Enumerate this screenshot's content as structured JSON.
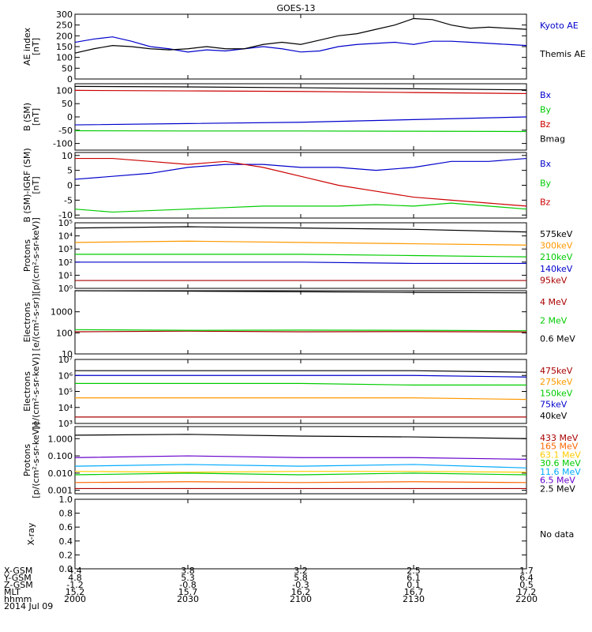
{
  "title": "GOES-13",
  "chart_data": {
    "type": "line",
    "xaxis": {
      "ticks": [
        "2000",
        "2030",
        "2100",
        "2130",
        "2200"
      ],
      "rows": [
        {
          "label": "X-GSM",
          "values": [
            "4.4",
            "3.8",
            "3.2",
            "2.5",
            "1.7"
          ]
        },
        {
          "label": "Y-GSM",
          "values": [
            "4.8",
            "5.3",
            "5.8",
            "6.1",
            "6.4"
          ]
        },
        {
          "label": "Z-GSM",
          "values": [
            "-1.2",
            "-0.8",
            "-0.3",
            "0.1",
            "0.5"
          ]
        },
        {
          "label": "MLT",
          "values": [
            "15.2",
            "15.7",
            "16.2",
            "16.7",
            "17.2"
          ]
        },
        {
          "label": "hhmm",
          "values": [
            "2000",
            "2030",
            "2100",
            "2130",
            "2200"
          ]
        }
      ],
      "date": "2014 Jul 09"
    },
    "panels": [
      {
        "id": "ae",
        "ylabel": [
          "AE index",
          "[nT]"
        ],
        "scale": "linear",
        "ylim": [
          0,
          300
        ],
        "ticks": [
          "0",
          "50",
          "100",
          "150",
          "200",
          "250",
          "300"
        ],
        "series": [
          {
            "name": "Kyoto AE",
            "color": "#0000cc",
            "x": [
              0,
              5,
              10,
              15,
              20,
              25,
              30,
              35,
              40,
              45,
              50,
              55,
              60,
              65,
              70,
              75,
              80,
              85,
              90,
              95,
              100,
              105,
              110,
              115,
              120
            ],
            "y": [
              170,
              185,
              195,
              175,
              150,
              140,
              125,
              135,
              130,
              140,
              150,
              140,
              125,
              130,
              150,
              160,
              165,
              170,
              160,
              175,
              175,
              170,
              165,
              160,
              155
            ]
          },
          {
            "name": "Themis AE",
            "color": "#000000",
            "x": [
              0,
              5,
              10,
              15,
              20,
              25,
              30,
              35,
              40,
              45,
              50,
              55,
              60,
              65,
              70,
              75,
              80,
              85,
              90,
              95,
              100,
              105,
              110,
              115,
              120
            ],
            "y": [
              120,
              140,
              155,
              150,
              140,
              135,
              140,
              150,
              140,
              140,
              160,
              170,
              160,
              180,
              200,
              210,
              230,
              250,
              280,
              275,
              250,
              235,
              240,
              235,
              230
            ]
          }
        ]
      },
      {
        "id": "bsm",
        "ylabel": [
          "B (SM)",
          "[nT]"
        ],
        "scale": "linear",
        "ylim": [
          -125,
          125
        ],
        "ticks": [
          "-100",
          "-50",
          "0",
          "50",
          "100"
        ],
        "series": [
          {
            "name": "Bx",
            "color": "#0000cc",
            "x": [
              0,
              30,
              60,
              90,
              120
            ],
            "y": [
              -30,
              -25,
              -20,
              -10,
              0
            ]
          },
          {
            "name": "By",
            "color": "#00cc00",
            "x": [
              0,
              30,
              60,
              90,
              120
            ],
            "y": [
              -52,
              -53,
              -53,
              -54,
              -55
            ]
          },
          {
            "name": "Bz",
            "color": "#cc0000",
            "x": [
              0,
              30,
              60,
              90,
              120
            ],
            "y": [
              100,
              98,
              96,
              92,
              88
            ]
          },
          {
            "name": "Bmag",
            "color": "#000000",
            "x": [
              0,
              30,
              60,
              90,
              120
            ],
            "y": [
              115,
              113,
              110,
              106,
              102
            ]
          }
        ]
      },
      {
        "id": "bigrf",
        "ylabel": [
          "B (SM)-IGRF (SM)",
          "[nT]"
        ],
        "scale": "linear",
        "ylim": [
          -11,
          11
        ],
        "ticks": [
          "-10",
          "-5",
          "0",
          "5",
          "10"
        ],
        "series": [
          {
            "name": "Bx",
            "color": "#0000cc",
            "x": [
              0,
              10,
              20,
              30,
              40,
              50,
              60,
              70,
              80,
              90,
              100,
              110,
              120
            ],
            "y": [
              2,
              3,
              4,
              6,
              7,
              7,
              6,
              6,
              5,
              6,
              8,
              8,
              9
            ]
          },
          {
            "name": "By",
            "color": "#00cc00",
            "x": [
              0,
              10,
              20,
              30,
              40,
              50,
              60,
              70,
              80,
              90,
              100,
              110,
              120
            ],
            "y": [
              -8,
              -9,
              -8.5,
              -8,
              -7.5,
              -7,
              -7,
              -7,
              -6.5,
              -7,
              -6,
              -7,
              -8
            ]
          },
          {
            "name": "Bz",
            "color": "#cc0000",
            "x": [
              0,
              10,
              20,
              30,
              40,
              50,
              60,
              70,
              80,
              90,
              100,
              110,
              120
            ],
            "y": [
              9,
              9,
              8,
              7,
              8,
              6,
              3,
              0,
              -2,
              -4,
              -5,
              -6,
              -7
            ]
          }
        ]
      },
      {
        "id": "protons",
        "ylabel": [
          "Protons",
          "[p/(cm²-s-sr-keV)]"
        ],
        "scale": "log",
        "ylim": [
          0,
          5
        ],
        "ticks": [
          "10⁰",
          "10¹",
          "10²",
          "10³",
          "10⁴",
          "10⁵"
        ],
        "series": [
          {
            "name": "575keV",
            "color": "#000000",
            "x": [
              0,
              30,
              60,
              90,
              120
            ],
            "y": [
              4.6,
              4.7,
              4.6,
              4.5,
              4.3
            ]
          },
          {
            "name": "300keV",
            "color": "#ff9900",
            "x": [
              0,
              30,
              60,
              90,
              120
            ],
            "y": [
              3.5,
              3.6,
              3.5,
              3.4,
              3.3
            ]
          },
          {
            "name": "210keV",
            "color": "#00cc00",
            "x": [
              0,
              30,
              60,
              90,
              120
            ],
            "y": [
              2.6,
              2.6,
              2.6,
              2.5,
              2.4
            ]
          },
          {
            "name": "140keV",
            "color": "#0000cc",
            "x": [
              0,
              30,
              60,
              90,
              120
            ],
            "y": [
              2.0,
              2.0,
              2.0,
              1.9,
              1.9
            ]
          },
          {
            "name": "95keV",
            "color": "#aa0000",
            "x": [
              0,
              30,
              60,
              90,
              120
            ],
            "y": [
              0.6,
              0.6,
              0.6,
              0.6,
              0.6
            ]
          }
        ]
      },
      {
        "id": "electrons1",
        "ylabel": [
          "Electrons",
          "[e/(cm²-s-sr)]"
        ],
        "scale": "log",
        "ylim": [
          0,
          3
        ],
        "ticks": [
          "10",
          "100",
          "1000"
        ],
        "series": [
          {
            "name": "4 MeV",
            "color": "#aa0000",
            "x": [
              0,
              30,
              60,
              90,
              120
            ],
            "y": [
              1.05,
              1.08,
              1.05,
              1.06,
              1.04
            ]
          },
          {
            "name": "2 MeV",
            "color": "#00cc00",
            "x": [
              0,
              30,
              60,
              90,
              120
            ],
            "y": [
              1.15,
              1.12,
              1.13,
              1.12,
              1.1
            ]
          },
          {
            "name": "0.6 MeV",
            "color": "#000000",
            "x": [
              0,
              30,
              60,
              90,
              120
            ],
            "y": [
              3.0,
              2.98,
              2.95,
              2.92,
              2.9
            ]
          }
        ]
      },
      {
        "id": "electrons2",
        "ylabel": [
          "Electrons",
          "[e/(cm²-s-sr-keV)]"
        ],
        "scale": "log",
        "ylim": [
          3,
          7
        ],
        "ticks": [
          "10³",
          "10⁴",
          "10⁵",
          "10⁶",
          "10⁷"
        ],
        "series": [
          {
            "name": "475keV",
            "color": "#aa0000",
            "x": [
              0,
              30,
              60,
              90,
              120
            ],
            "y": [
              3.4,
              3.4,
              3.4,
              3.4,
              3.4
            ]
          },
          {
            "name": "275keV",
            "color": "#ff9900",
            "x": [
              0,
              30,
              60,
              90,
              120
            ],
            "y": [
              4.6,
              4.6,
              4.6,
              4.6,
              4.5
            ]
          },
          {
            "name": "150keV",
            "color": "#00cc00",
            "x": [
              0,
              30,
              60,
              90,
              120
            ],
            "y": [
              5.5,
              5.5,
              5.5,
              5.4,
              5.4
            ]
          },
          {
            "name": "75keV",
            "color": "#0000cc",
            "x": [
              0,
              30,
              60,
              90,
              120
            ],
            "y": [
              6.0,
              6.0,
              6.0,
              6.0,
              5.9
            ]
          },
          {
            "name": "40keV",
            "color": "#000000",
            "x": [
              0,
              30,
              60,
              90,
              120
            ],
            "y": [
              6.3,
              6.3,
              6.3,
              6.3,
              6.2
            ]
          }
        ]
      },
      {
        "id": "protons2",
        "ylabel": [
          "Protons",
          "[p/(cm²-s-sr-keV)]"
        ],
        "scale": "log",
        "ylim": [
          -3.2,
          0.7
        ],
        "ticks": [
          "0.001",
          "0.010",
          "0.100",
          "1.000"
        ],
        "series": [
          {
            "name": "433 MeV",
            "color": "#aa0000",
            "x": [
              0,
              30,
              60,
              90,
              120
            ],
            "y": [
              -2.9,
              -2.9,
              -2.9,
              -2.9,
              -2.9
            ]
          },
          {
            "name": "165 MeV",
            "color": "#ff6600",
            "x": [
              0,
              30,
              60,
              90,
              120
            ],
            "y": [
              -2.55,
              -2.5,
              -2.55,
              -2.5,
              -2.55
            ]
          },
          {
            "name": "63.1 MeV",
            "color": "#ffcc00",
            "x": [
              0,
              30,
              60,
              90,
              120
            ],
            "y": [
              -1.9,
              -1.95,
              -1.9,
              -1.9,
              -1.95
            ]
          },
          {
            "name": "30.6 MeV",
            "color": "#00cc00",
            "x": [
              0,
              30,
              60,
              90,
              120
            ],
            "y": [
              -2.1,
              -2.0,
              -2.1,
              -2.0,
              -2.1
            ]
          },
          {
            "name": "11.6 MeV",
            "color": "#00aaff",
            "x": [
              0,
              30,
              60,
              90,
              120
            ],
            "y": [
              -1.6,
              -1.5,
              -1.6,
              -1.5,
              -1.7
            ]
          },
          {
            "name": "6.5 MeV",
            "color": "#6600cc",
            "x": [
              0,
              30,
              60,
              90,
              120
            ],
            "y": [
              -1.1,
              -1.0,
              -1.1,
              -1.1,
              -1.2
            ]
          },
          {
            "name": "2.5 MeV",
            "color": "#000000",
            "x": [
              0,
              30,
              60,
              90,
              120
            ],
            "y": [
              0.2,
              0.25,
              0.15,
              0.1,
              0.0
            ]
          }
        ]
      },
      {
        "id": "xray",
        "ylabel": [
          "X-ray"
        ],
        "scale": "linear",
        "ylim": [
          0,
          1
        ],
        "ticks": [
          "0.0",
          "0.2",
          "0.4",
          "0.6",
          "0.8",
          "1.0"
        ],
        "note": "No data",
        "series": []
      }
    ]
  }
}
